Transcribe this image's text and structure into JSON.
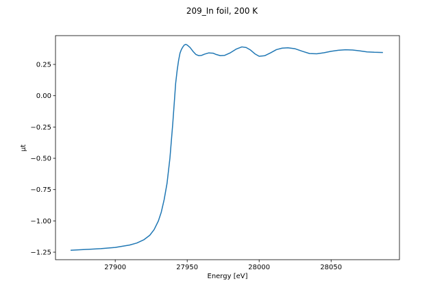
{
  "chart_data": {
    "type": "line",
    "title": "209_In foil, 200 K",
    "xlabel": "Energy [eV]",
    "ylabel": "μt",
    "xlim": [
      27858.5,
      28097.5
    ],
    "ylim": [
      -1.31,
      0.48
    ],
    "xticks": [
      {
        "value": 27900,
        "label": "27900"
      },
      {
        "value": 27950,
        "label": "27950"
      },
      {
        "value": 28000,
        "label": "28000"
      },
      {
        "value": 28050,
        "label": "28050"
      }
    ],
    "yticks": [
      {
        "value": 0.25,
        "label": "0.25"
      },
      {
        "value": 0.0,
        "label": "0.00"
      },
      {
        "value": -0.25,
        "label": "−0.25"
      },
      {
        "value": -0.5,
        "label": "−0.50"
      },
      {
        "value": -0.75,
        "label": "−0.75"
      },
      {
        "value": -1.0,
        "label": "−1.00"
      },
      {
        "value": -1.25,
        "label": "−1.25"
      }
    ],
    "grid": false,
    "series": [
      {
        "color": "#1f77b4",
        "x": [
          27869,
          27880,
          27890,
          27900,
          27910,
          27915,
          27920,
          27924,
          27927,
          27930,
          27932,
          27934,
          27936,
          27938,
          27940,
          27941,
          27942,
          27943,
          27944,
          27945,
          27946,
          27947,
          27948,
          27949,
          27950,
          27952,
          27954,
          27956,
          27958,
          27960,
          27962,
          27965,
          27968,
          27970,
          27973,
          27976,
          27980,
          27984,
          27988,
          27991,
          27994,
          27997,
          28000,
          28004,
          28008,
          28012,
          28016,
          28020,
          28025,
          28030,
          28035,
          28040,
          28045,
          28050,
          28055,
          28060,
          28065,
          28070,
          28075,
          28080,
          28086
        ],
        "y": [
          -1.235,
          -1.228,
          -1.222,
          -1.212,
          -1.193,
          -1.177,
          -1.15,
          -1.115,
          -1.07,
          -1.0,
          -0.93,
          -0.83,
          -0.7,
          -0.5,
          -0.22,
          -0.06,
          0.1,
          0.2,
          0.28,
          0.34,
          0.37,
          0.39,
          0.405,
          0.41,
          0.405,
          0.385,
          0.355,
          0.33,
          0.32,
          0.322,
          0.332,
          0.342,
          0.34,
          0.33,
          0.32,
          0.322,
          0.343,
          0.372,
          0.39,
          0.385,
          0.365,
          0.335,
          0.315,
          0.32,
          0.343,
          0.368,
          0.38,
          0.383,
          0.375,
          0.355,
          0.337,
          0.335,
          0.343,
          0.355,
          0.363,
          0.367,
          0.365,
          0.358,
          0.35,
          0.347,
          0.345
        ]
      }
    ]
  }
}
